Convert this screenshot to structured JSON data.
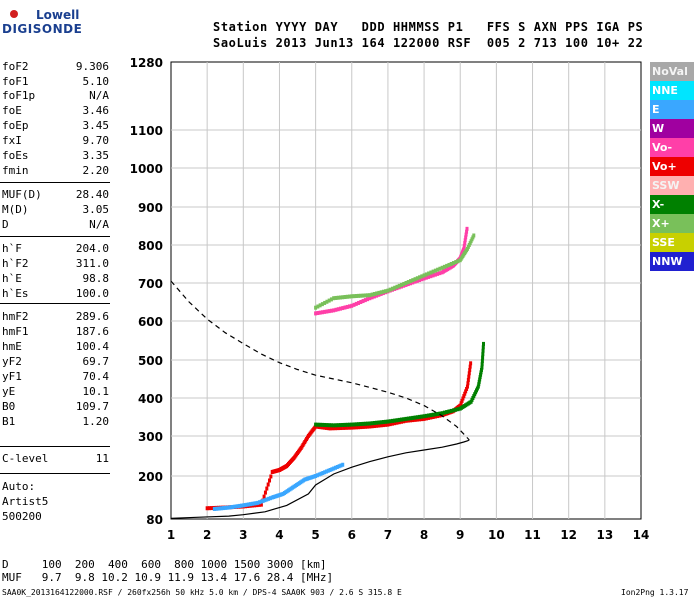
{
  "logo": {
    "top": "Lowell",
    "bottom": "DIGISONDE"
  },
  "header": {
    "line1": "Station YYYY DAY   DDD HHMMSS P1   FFS S AXN PPS IGA PS",
    "line2": "SaoLuis 2013 Jun13 164 122000 RSF  005 2 713 100 10+ 22"
  },
  "params": [
    {
      "label": "foF2",
      "value": "9.306"
    },
    {
      "label": "foF1",
      "value": "5.10"
    },
    {
      "label": "foF1p",
      "value": "N/A"
    },
    {
      "label": "foE",
      "value": "3.46"
    },
    {
      "label": "foEp",
      "value": "3.45"
    },
    {
      "label": "fxI",
      "value": "9.70"
    },
    {
      "label": "foEs",
      "value": "3.35"
    },
    {
      "label": "fmin",
      "value": "2.20"
    },
    {
      "label": "MUF(D)",
      "value": "28.40"
    },
    {
      "label": "M(D)",
      "value": "3.05"
    },
    {
      "label": "D",
      "value": "N/A"
    },
    {
      "label": "h`F",
      "value": "204.0"
    },
    {
      "label": "h`F2",
      "value": "311.0"
    },
    {
      "label": "h`E",
      "value": "98.8"
    },
    {
      "label": "h`Es",
      "value": "100.0"
    },
    {
      "label": "hmF2",
      "value": "289.6"
    },
    {
      "label": "hmF1",
      "value": "187.6"
    },
    {
      "label": "hmE",
      "value": "100.4"
    },
    {
      "label": "yF2",
      "value": "69.7"
    },
    {
      "label": "yF1",
      "value": "70.4"
    },
    {
      "label": "yE",
      "value": "10.1"
    },
    {
      "label": "B0",
      "value": "109.7"
    },
    {
      "label": "B1",
      "value": "1.20"
    },
    {
      "label": "C-level",
      "value": "11"
    }
  ],
  "auto": [
    "Auto:",
    "Artist5",
    "500200"
  ],
  "legend": [
    {
      "label": "NoVal",
      "color": "#a8a8a8"
    },
    {
      "label": "NNE",
      "color": "#00e5ff"
    },
    {
      "label": "E",
      "color": "#3aa7ff"
    },
    {
      "label": "W",
      "color": "#a000a0"
    },
    {
      "label": "Vo-",
      "color": "#ff3fa8"
    },
    {
      "label": "Vo+",
      "color": "#ee0000"
    },
    {
      "label": "SSW",
      "color": "#ffb0b0"
    },
    {
      "label": "X-",
      "color": "#008000"
    },
    {
      "label": "X+",
      "color": "#79c05a"
    },
    {
      "label": "SSE",
      "color": "#c8d000"
    },
    {
      "label": "NNW",
      "color": "#2020d0"
    }
  ],
  "footer": {
    "d_line": "D     100  200  400  600  800 1000 1500 3000 [km]",
    "muf_line": "MUF   9.7  9.8 10.2 10.9 11.9 13.4 17.6 28.4 [MHz]",
    "source": "SAA0K_2013164122000.RSF / 260fx256h 50 kHz 5.0 km / DPS-4 SAA0K 903 / 2.6 S 315.8 E",
    "version": "Ion2Png 1.3.17"
  },
  "chart_data": {
    "type": "scatter",
    "xlim": [
      1,
      14
    ],
    "ylim": [
      80,
      1280
    ],
    "x_ticks": [
      1,
      2,
      3,
      4,
      5,
      6,
      7,
      8,
      9,
      10,
      11,
      12,
      13,
      14
    ],
    "y_ticks": [
      80,
      200,
      300,
      400,
      500,
      600,
      700,
      800,
      900,
      1000,
      1100,
      1280
    ],
    "grid": true,
    "profile_curve": {
      "x": [
        1.0,
        1.8,
        2.6,
        3.0,
        3.6,
        4.2,
        4.8,
        5.0,
        5.5,
        6.0,
        6.5,
        7.0,
        7.5,
        8.0,
        8.5,
        8.9,
        9.1,
        9.2,
        9.25
      ],
      "y": [
        82,
        85,
        88,
        92,
        100,
        118,
        150,
        175,
        205,
        222,
        236,
        248,
        258,
        265,
        272,
        280,
        285,
        288,
        290
      ]
    },
    "dashed_curve": {
      "x": [
        1.0,
        1.5,
        2.0,
        2.5,
        3.0,
        3.5,
        4.0,
        4.5,
        5.0,
        5.5,
        6.0,
        6.5,
        7.0,
        7.5,
        8.0,
        8.5,
        8.9,
        9.1,
        9.25
      ],
      "y": [
        705,
        650,
        605,
        570,
        542,
        515,
        493,
        475,
        460,
        450,
        440,
        428,
        415,
        400,
        380,
        353,
        325,
        305,
        290
      ]
    },
    "traces": [
      {
        "name": "Vo+",
        "color": "#ee0000",
        "x": [
          2.0,
          2.5,
          3.0,
          3.5,
          3.8,
          4.0,
          4.2,
          4.4,
          4.6,
          4.8,
          5.0,
          5.4,
          6.0,
          6.5,
          7.0,
          7.5,
          8.0,
          8.5,
          8.8,
          9.0,
          9.2,
          9.3
        ],
        "y": [
          110,
          112,
          115,
          120,
          210,
          215,
          225,
          245,
          270,
          300,
          325,
          320,
          322,
          325,
          330,
          340,
          345,
          355,
          365,
          380,
          430,
          500
        ]
      },
      {
        "name": "X-",
        "color": "#008000",
        "x": [
          5.0,
          5.5,
          6.0,
          6.5,
          7.0,
          7.5,
          8.0,
          8.5,
          9.0,
          9.3,
          9.5,
          9.6,
          9.65
        ],
        "y": [
          330,
          328,
          330,
          333,
          338,
          345,
          352,
          360,
          372,
          390,
          430,
          480,
          550
        ]
      },
      {
        "name": "Vo-",
        "color": "#ff3fa8",
        "x": [
          5.0,
          5.5,
          6.0,
          6.5,
          7.0,
          7.5,
          8.0,
          8.5,
          8.8,
          9.0,
          9.1,
          9.2
        ],
        "y": [
          620,
          628,
          640,
          660,
          678,
          695,
          712,
          728,
          745,
          765,
          790,
          850
        ]
      },
      {
        "name": "X+",
        "color": "#79c05a",
        "x": [
          5.0,
          5.5,
          6.0,
          6.5,
          7.0,
          7.5,
          8.0,
          8.5,
          9.0,
          9.2,
          9.4
        ],
        "y": [
          635,
          660,
          665,
          668,
          680,
          700,
          720,
          740,
          760,
          790,
          830
        ]
      },
      {
        "name": "E",
        "color": "#3aa7ff",
        "x": [
          2.2,
          2.6,
          3.0,
          3.4,
          3.8,
          4.1,
          4.4,
          4.7,
          5.0,
          5.4,
          5.8
        ],
        "y": [
          108,
          112,
          118,
          125,
          140,
          150,
          170,
          190,
          200,
          215,
          230
        ]
      }
    ]
  }
}
